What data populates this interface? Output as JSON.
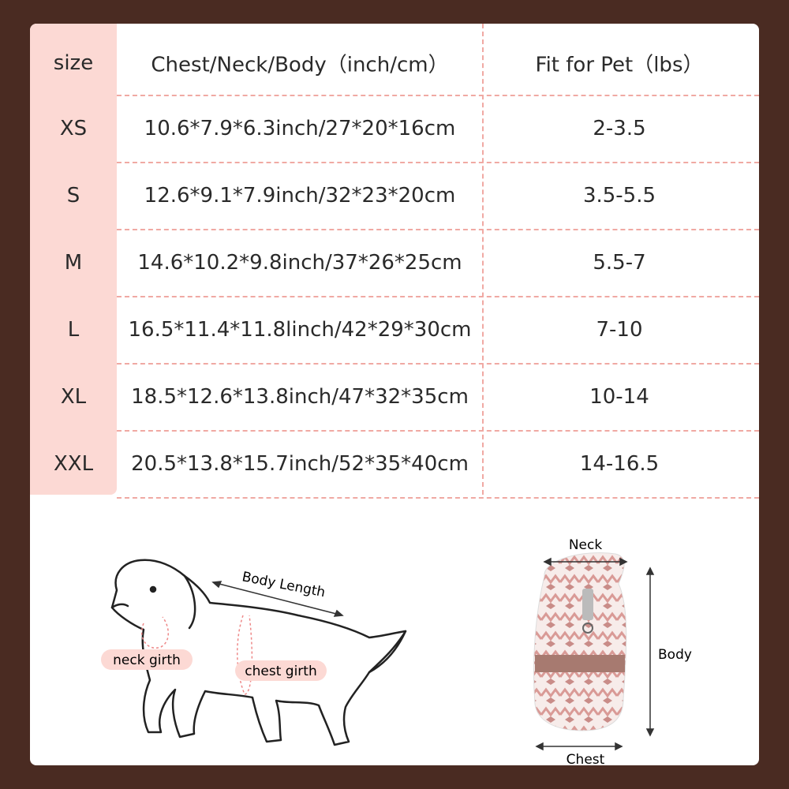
{
  "table": {
    "header": [
      "size",
      "Chest/Neck/Body（inch/cm）",
      "Fit for Pet（lbs）"
    ],
    "rows": [
      [
        "XS",
        "10.6*7.9*6.3inch/27*20*16cm",
        "2-3.5"
      ],
      [
        "S",
        "12.6*9.1*7.9inch/32*23*20cm",
        "3.5-5.5"
      ],
      [
        "M",
        "14.6*10.2*9.8inch/37*26*25cm",
        "5.5-7"
      ],
      [
        "L",
        "16.5*11.4*11.8linch/42*29*30cm",
        "7-10"
      ],
      [
        "XL",
        "18.5*12.6*13.8inch/47*32*35cm",
        "10-14"
      ],
      [
        "XXL",
        "20.5*13.8*15.7inch/52*35*40cm",
        "14-16.5"
      ]
    ]
  },
  "dog_diagram": {
    "body_length": "Body Length",
    "neck_girth": "neck girth",
    "chest_girth": "chest girth"
  },
  "sweater_diagram": {
    "neck": "Neck",
    "body": "Body",
    "chest": "Chest"
  }
}
